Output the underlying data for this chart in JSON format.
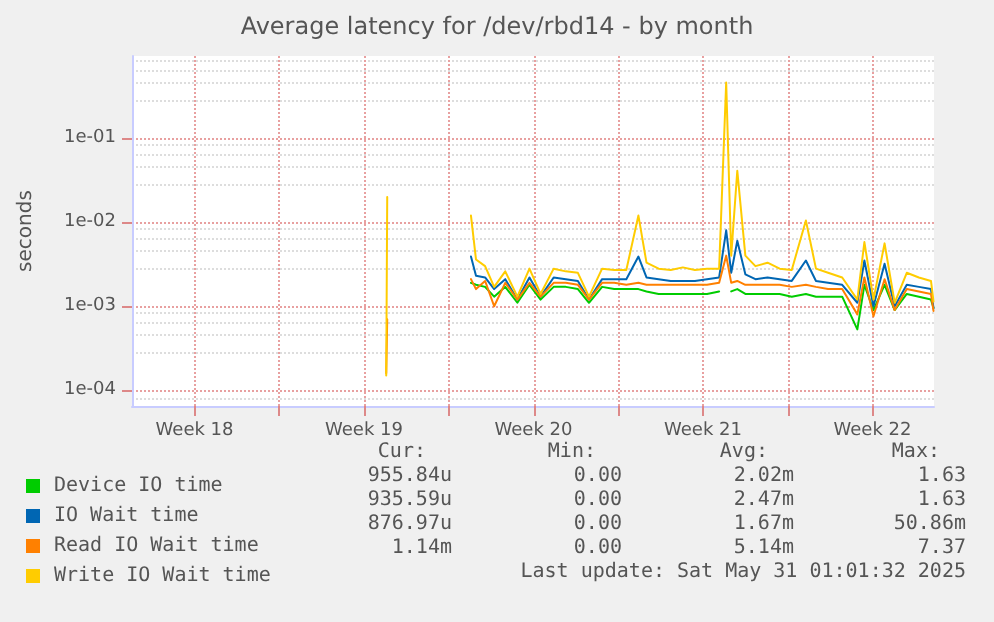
{
  "chart_data": {
    "type": "line",
    "title": "Average latency for /dev/rbd14 - by month",
    "ylabel": "seconds",
    "log": "y",
    "grid": true,
    "legend": "bottom left",
    "marker": "none",
    "line_style": "solid",
    "xlim": [
      "2025-04-27T22:00",
      "2025-05-31T01:00"
    ],
    "xticks": [
      {
        "value": "2025-04-30T12:00",
        "label": "Week 18"
      },
      {
        "value": "2025-05-04T00:00",
        "label": null
      },
      {
        "value": "2025-05-07T12:00",
        "label": "Week 19"
      },
      {
        "value": "2025-05-11T00:00",
        "label": null
      },
      {
        "value": "2025-05-14T12:00",
        "label": "Week 20"
      },
      {
        "value": "2025-05-18T00:00",
        "label": null
      },
      {
        "value": "2025-05-21T12:00",
        "label": "Week 21"
      },
      {
        "value": "2025-05-25T00:00",
        "label": null
      },
      {
        "value": "2025-05-28T12:00",
        "label": "Week 22"
      }
    ],
    "ylim": [
      6.5e-05,
      0.95
    ],
    "yticks": [
      {
        "value": 0.0001,
        "label": "1e-04"
      },
      {
        "value": 0.001,
        "label": "1e-03"
      },
      {
        "value": 0.01,
        "label": "1e-02"
      },
      {
        "value": 0.1,
        "label": "1e-01"
      }
    ],
    "x": [
      "2025-05-08T10:00",
      "2025-05-08T11:00",
      "2025-05-10T00:00",
      "2025-05-11T22:00",
      "2025-05-12T03:00",
      "2025-05-12T12:00",
      "2025-05-12T21:00",
      "2025-05-13T08:00",
      "2025-05-13T20:00",
      "2025-05-14T08:00",
      "2025-05-14T19:00",
      "2025-05-15T08:00",
      "2025-05-15T20:00",
      "2025-05-16T08:00",
      "2025-05-16T19:00",
      "2025-05-17T08:00",
      "2025-05-17T20:00",
      "2025-05-18T08:00",
      "2025-05-18T20:00",
      "2025-05-19T04:00",
      "2025-05-19T16:00",
      "2025-05-20T04:00",
      "2025-05-20T16:00",
      "2025-05-21T04:00",
      "2025-05-21T16:00",
      "2025-05-22T04:00",
      "2025-05-22T11:00",
      "2025-05-22T16:00",
      "2025-05-22T22:00",
      "2025-05-23T06:00",
      "2025-05-23T16:00",
      "2025-05-24T04:00",
      "2025-05-24T16:00",
      "2025-05-25T04:00",
      "2025-05-25T18:00",
      "2025-05-26T04:00",
      "2025-05-26T16:00",
      "2025-05-27T06:00",
      "2025-05-27T21:00",
      "2025-05-28T04:00",
      "2025-05-28T13:00",
      "2025-05-29T00:00",
      "2025-05-29T10:00",
      "2025-05-29T22:00",
      "2025-05-30T10:00",
      "2025-05-30T22:00",
      "2025-05-31T00:30"
    ],
    "series": [
      {
        "name": "Device IO time",
        "color": "#00cc00",
        "values": [
          null,
          null,
          null,
          0.0019,
          0.0018,
          0.0017,
          0.0013,
          0.0017,
          0.0011,
          0.0018,
          0.0012,
          0.0017,
          0.0017,
          0.0016,
          0.0011,
          0.0017,
          0.0016,
          0.0016,
          0.0016,
          0.0015,
          0.0014,
          0.0014,
          0.0014,
          0.0014,
          0.0014,
          0.0015,
          null,
          0.0015,
          0.0016,
          0.0014,
          0.0014,
          0.0014,
          0.0014,
          0.0013,
          0.0014,
          0.0013,
          0.0013,
          0.0013,
          0.00053,
          0.0018,
          0.0009,
          0.0018,
          0.0009,
          0.0014,
          0.0013,
          0.0012,
          0.00096
        ]
      },
      {
        "name": "IO Wait time",
        "color": "#0066b3",
        "values": [
          null,
          null,
          null,
          0.0039,
          0.0023,
          0.0022,
          0.0016,
          0.0021,
          0.0012,
          0.0022,
          0.0013,
          0.0022,
          0.0021,
          0.002,
          0.0012,
          0.0021,
          0.0021,
          0.0021,
          0.0039,
          0.0022,
          0.0021,
          0.002,
          0.002,
          0.002,
          0.0021,
          0.0022,
          0.008,
          0.0025,
          0.006,
          0.0024,
          0.0021,
          0.0022,
          0.0021,
          0.002,
          0.0035,
          0.002,
          0.0019,
          0.0018,
          0.0011,
          0.0035,
          0.001,
          0.0032,
          0.001,
          0.0018,
          0.0017,
          0.0016,
          0.00094
        ]
      },
      {
        "name": "Read IO Wait time",
        "color": "#ff8000",
        "values": [
          0.00016,
          0.0007,
          null,
          0.0021,
          0.0016,
          0.002,
          0.001,
          0.0019,
          0.0012,
          0.0019,
          0.0013,
          0.0019,
          0.0019,
          0.0018,
          0.0012,
          0.0019,
          0.0019,
          0.0018,
          0.0019,
          0.0018,
          0.0018,
          0.0018,
          0.0018,
          0.0018,
          0.0018,
          0.0019,
          0.004,
          0.0019,
          0.002,
          0.0018,
          0.0018,
          0.0018,
          0.0018,
          0.0017,
          0.0018,
          0.0017,
          0.0016,
          0.0016,
          0.0008,
          0.0022,
          0.00076,
          0.0021,
          0.0009,
          0.0016,
          0.0015,
          0.0014,
          0.00088
        ]
      },
      {
        "name": "Write IO Wait time",
        "color": "#ffcc00",
        "values": [
          0.00015,
          0.02,
          null,
          0.012,
          0.0036,
          0.003,
          0.0017,
          0.0026,
          0.0013,
          0.0028,
          0.0014,
          0.0028,
          0.0026,
          0.0025,
          0.0013,
          0.0028,
          0.0027,
          0.0027,
          0.012,
          0.0033,
          0.0028,
          0.0027,
          0.0029,
          0.0027,
          0.0028,
          0.0028,
          0.46,
          0.004,
          0.041,
          0.004,
          0.003,
          0.0033,
          0.0028,
          0.0027,
          0.0105,
          0.0028,
          0.0025,
          0.0022,
          0.0012,
          0.0058,
          0.0012,
          0.0056,
          0.0011,
          0.0025,
          0.0022,
          0.002,
          0.00114
        ]
      }
    ],
    "annotations": [
      "Cur:",
      "Min:",
      "Avg:",
      "Max:",
      "955.84u",
      "0.00",
      "2.02m",
      "1.63",
      "935.59u",
      "0.00",
      "2.47m",
      "1.63",
      "876.97u",
      "0.00",
      "1.67m",
      "50.86m",
      "1.14m",
      "0.00",
      "5.14m",
      "7.37",
      "Last update: Sat May 31 01:01:32 2025"
    ]
  }
}
